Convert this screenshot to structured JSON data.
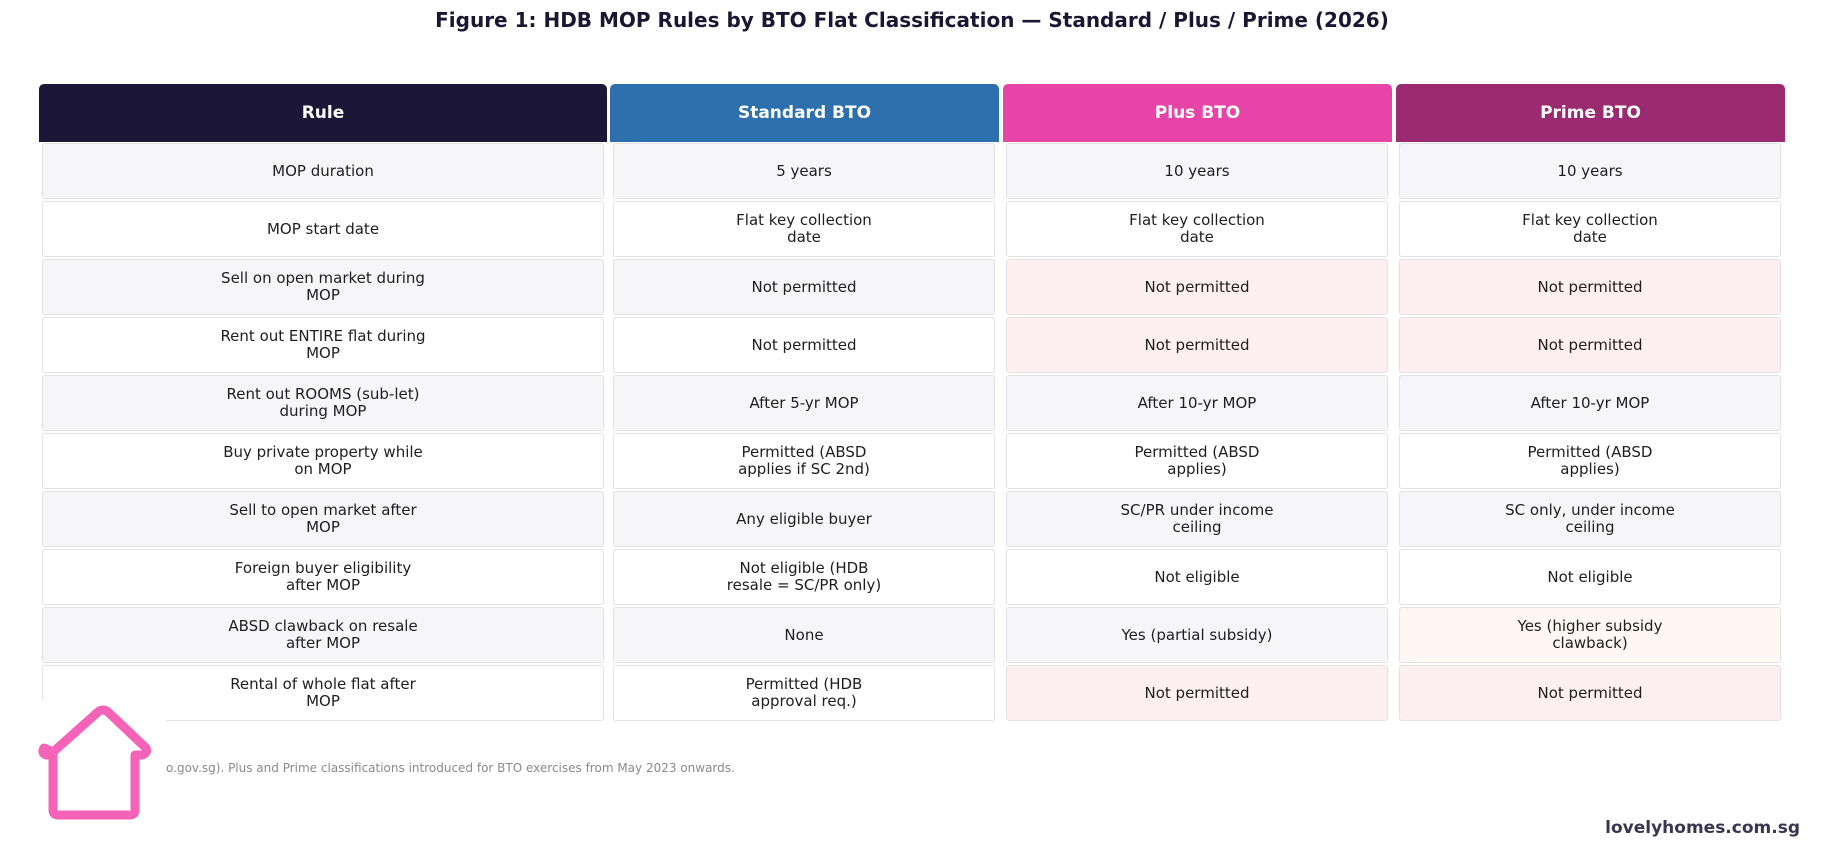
{
  "title": "Figure 1: HDB MOP Rules by BTO Flat Classification — Standard / Plus / Prime (2026)",
  "colors": {
    "header_rule": "#1c1736",
    "header_standard": "#2e70ae",
    "header_plus": "#e843a6",
    "header_prime": "#9b2a70",
    "row_alt": "#f6f6f8",
    "row_plain": "#ffffff",
    "restricted": "#fef0f0",
    "caution": "#fff7f3",
    "logo": "#f463b8"
  },
  "table": {
    "headers": [
      "Rule",
      "Standard BTO",
      "Plus BTO",
      "Prime BTO"
    ],
    "rows": [
      {
        "cells": [
          "MOP duration",
          "5 years",
          "10 years",
          "10 years"
        ],
        "tones": [
          "alt",
          "alt",
          "alt",
          "alt"
        ]
      },
      {
        "cells": [
          "MOP start date",
          "Flat key collection\ndate",
          "Flat key collection\ndate",
          "Flat key collection\ndate"
        ],
        "tones": [
          "plain",
          "plain",
          "plain",
          "plain"
        ]
      },
      {
        "cells": [
          "Sell on open market during\nMOP",
          "Not permitted",
          "Not permitted",
          "Not permitted"
        ],
        "tones": [
          "alt",
          "alt",
          "restricted",
          "restricted"
        ]
      },
      {
        "cells": [
          "Rent out ENTIRE flat during\nMOP",
          "Not permitted",
          "Not permitted",
          "Not permitted"
        ],
        "tones": [
          "plain",
          "plain",
          "restricted",
          "restricted"
        ]
      },
      {
        "cells": [
          "Rent out ROOMS (sub-let)\nduring MOP",
          "After 5-yr MOP",
          "After 10-yr MOP",
          "After 10-yr MOP"
        ],
        "tones": [
          "alt",
          "alt",
          "alt",
          "alt"
        ]
      },
      {
        "cells": [
          "Buy private property while\non MOP",
          "Permitted (ABSD\napplies if SC 2nd)",
          "Permitted (ABSD\napplies)",
          "Permitted (ABSD\napplies)"
        ],
        "tones": [
          "plain",
          "plain",
          "plain",
          "plain"
        ]
      },
      {
        "cells": [
          "Sell to open market after\nMOP",
          "Any eligible buyer",
          "SC/PR under income\nceiling",
          "SC only, under income\nceiling"
        ],
        "tones": [
          "alt",
          "alt",
          "alt",
          "alt"
        ]
      },
      {
        "cells": [
          "Foreign buyer eligibility\nafter MOP",
          "Not eligible (HDB\nresale = SC/PR only)",
          "Not eligible",
          "Not eligible"
        ],
        "tones": [
          "plain",
          "plain",
          "plain",
          "plain"
        ]
      },
      {
        "cells": [
          "ABSD clawback on resale\nafter MOP",
          "None",
          "Yes (partial subsidy)",
          "Yes (higher subsidy\nclawback)"
        ],
        "tones": [
          "alt",
          "alt",
          "alt",
          "caution"
        ]
      },
      {
        "cells": [
          "Rental of whole flat after\nMOP",
          "Permitted (HDB\napproval req.)",
          "Not permitted",
          "Not permitted"
        ],
        "tones": [
          "plain",
          "plain",
          "restricted",
          "restricted"
        ]
      }
    ]
  },
  "footnote": "o.gov.sg). Plus and Prime classifications introduced for BTO exercises from May 2023 onwards.",
  "brand": "lovelyhomes.com.sg",
  "logo_icon": "house-outline-icon"
}
